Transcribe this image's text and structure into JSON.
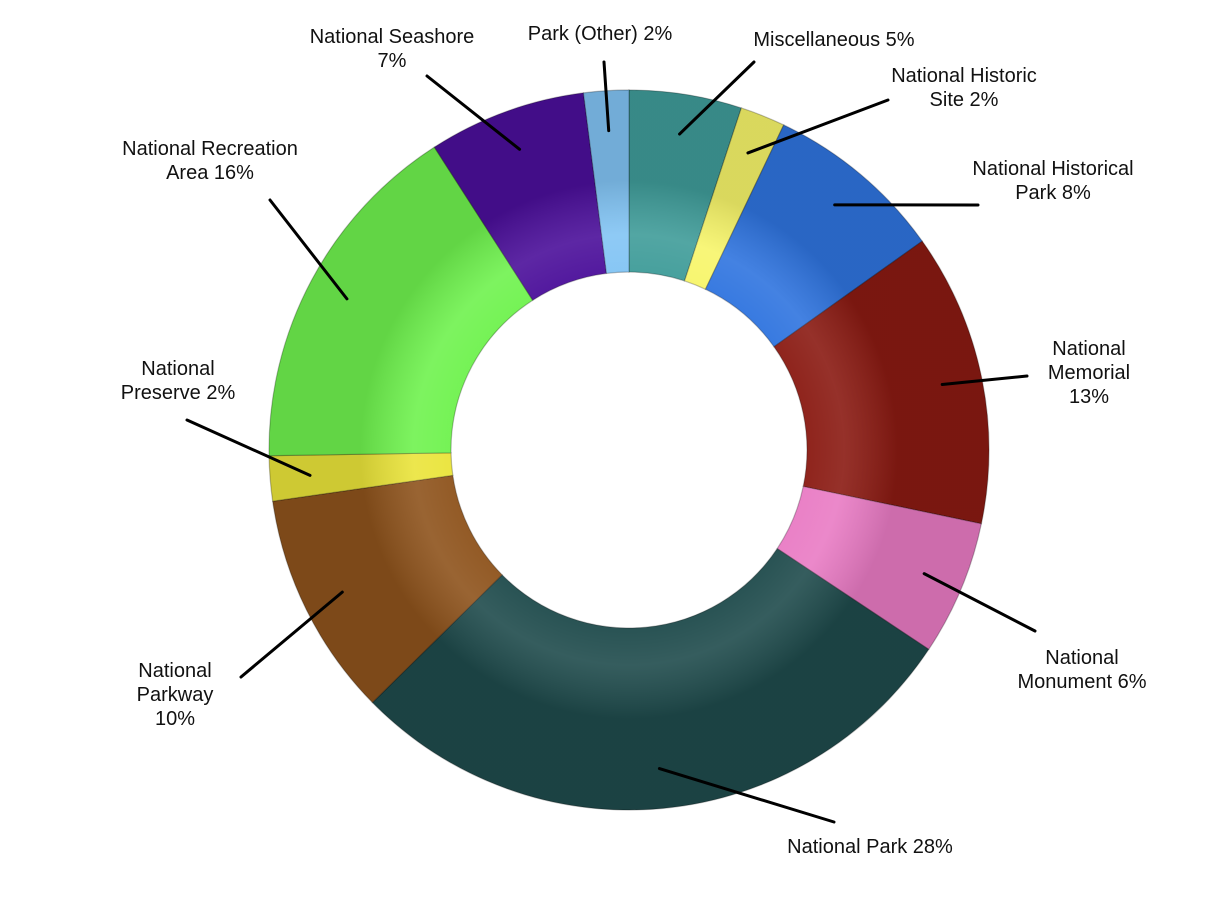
{
  "chart_data": {
    "type": "pie",
    "variant": "donut",
    "title": "",
    "start": "top, clockwise",
    "slices": [
      {
        "name": "Miscellaneous",
        "value": 5,
        "color": "#3f9c99",
        "label_lines": [
          "Miscellaneous 5%"
        ]
      },
      {
        "name": "National Historic Site",
        "value": 2,
        "color": "#f7f56a",
        "label_lines": [
          "National Historic",
          "Site 2%"
        ]
      },
      {
        "name": "National Historical Park",
        "value": 8,
        "color": "#2f74df",
        "label_lines": [
          "National Historical",
          "Park 8%"
        ]
      },
      {
        "name": "National Memorial",
        "value": 13,
        "color": "#8a1a12",
        "label_lines": [
          "National",
          "Memorial",
          "13%"
        ]
      },
      {
        "name": "National Monument",
        "value": 6,
        "color": "#e97bc4",
        "label_lines": [
          "National",
          "Monument 6%"
        ]
      },
      {
        "name": "National Park",
        "value": 28,
        "color": "#1f4b4c",
        "label_lines": [
          "National Park 28%"
        ]
      },
      {
        "name": "National Parkway",
        "value": 10,
        "color": "#8e531c",
        "label_lines": [
          "National",
          "Parkway",
          "10%"
        ]
      },
      {
        "name": "National Preserve",
        "value": 2,
        "color": "#eae43a",
        "label_lines": [
          "National",
          "Preserve 2%"
        ]
      },
      {
        "name": "National Recreation Area",
        "value": 16,
        "color": "#6ff24e",
        "label_lines": [
          "National Recreation",
          "Area 16%"
        ]
      },
      {
        "name": "National Seashore",
        "value": 7,
        "color": "#4b0f9a",
        "label_lines": [
          "National Seashore",
          "7%"
        ]
      },
      {
        "name": "Park (Other)",
        "value": 2,
        "color": "#82c4f4",
        "label_lines": [
          "Park (Other) 2%"
        ]
      }
    ]
  }
}
